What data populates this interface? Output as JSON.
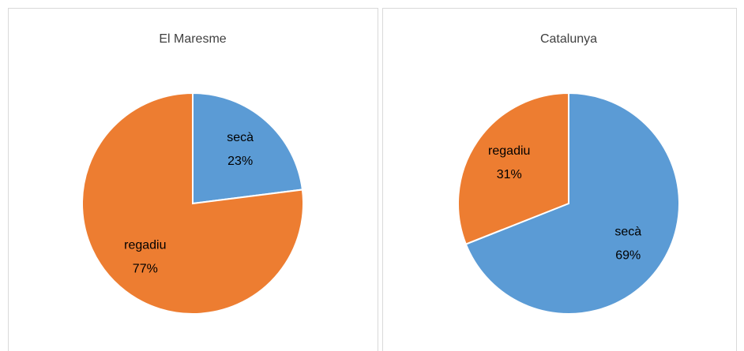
{
  "chart_data": [
    {
      "type": "pie",
      "title": "El Maresme",
      "categories": [
        "secà",
        "regadiu"
      ],
      "values": [
        23,
        77
      ],
      "value_labels": [
        "23%",
        "77%"
      ],
      "colors": [
        "#5b9bd5",
        "#ed7d31"
      ]
    },
    {
      "type": "pie",
      "title": "Catalunya",
      "categories": [
        "secà",
        "regadiu"
      ],
      "values": [
        69,
        31
      ],
      "value_labels": [
        "69%",
        "31%"
      ],
      "colors": [
        "#5b9bd5",
        "#ed7d31"
      ]
    }
  ]
}
